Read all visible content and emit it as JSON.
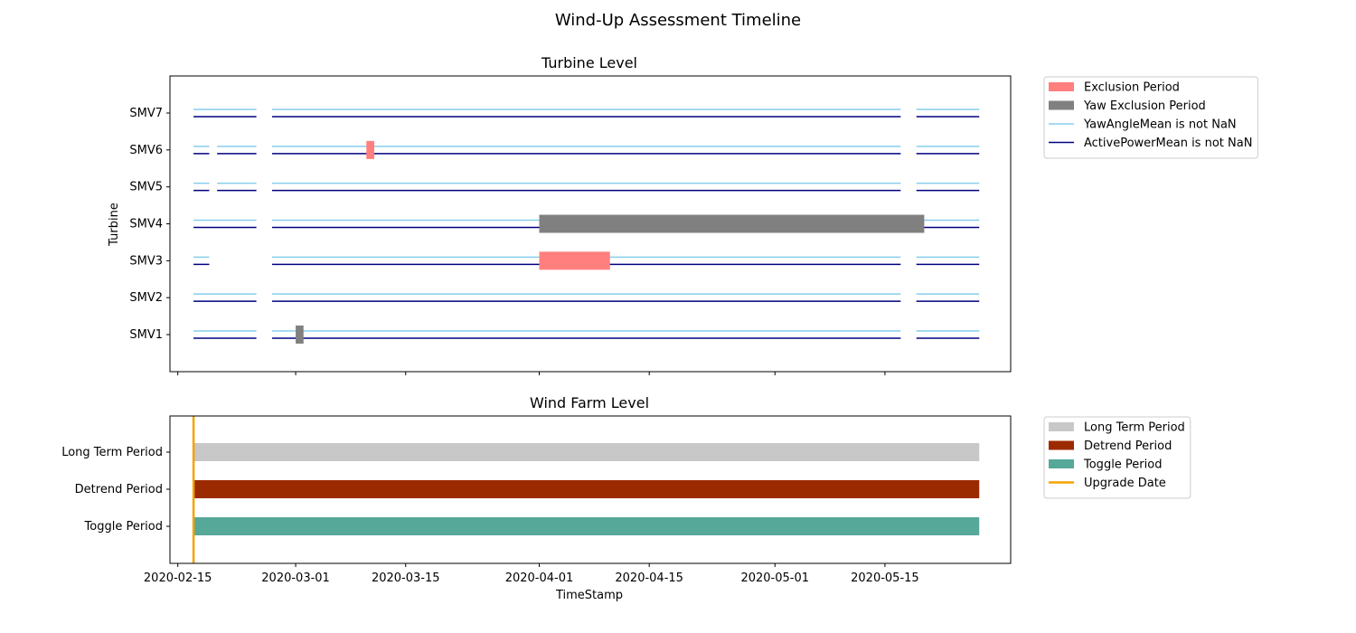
{
  "title": "Wind-Up Assessment Timeline",
  "chart_data": [
    {
      "type": "timeline",
      "title": "Turbine Level",
      "ylabel": "Turbine",
      "xlim": [
        "2020-02-14",
        "2020-05-31"
      ],
      "categories": [
        "SMV7",
        "SMV6",
        "SMV5",
        "SMV4",
        "SMV3",
        "SMV2",
        "SMV1"
      ],
      "legend": [
        {
          "label": "Exclusion Period",
          "kind": "patch",
          "color": "#ff7f7f"
        },
        {
          "label": "Yaw Exclusion Period",
          "kind": "patch",
          "color": "#808080"
        },
        {
          "label": "YawAngleMean is not NaN",
          "kind": "line",
          "color": "#87ceeb"
        },
        {
          "label": "ActivePowerMean is not NaN",
          "kind": "line",
          "color": "#000080"
        }
      ],
      "legend_position": "outside-right-top",
      "exclusion_periods": [
        {
          "turbine": "SMV6",
          "start": "2020-03-10",
          "end": "2020-03-11",
          "type": "Exclusion Period"
        },
        {
          "turbine": "SMV3",
          "start": "2020-04-01",
          "end": "2020-04-10",
          "type": "Exclusion Period"
        },
        {
          "turbine": "SMV4",
          "start": "2020-04-01",
          "end": "2020-05-20",
          "type": "Yaw Exclusion Period"
        },
        {
          "turbine": "SMV1",
          "start": "2020-03-01",
          "end": "2020-03-02",
          "type": "Yaw Exclusion Period"
        }
      ],
      "data_availability": [
        {
          "turbine": "SMV7",
          "segments": [
            [
              "2020-02-17",
              "2020-02-25"
            ],
            [
              "2020-02-27",
              "2020-05-17"
            ],
            [
              "2020-05-19",
              "2020-05-27"
            ]
          ]
        },
        {
          "turbine": "SMV6",
          "segments": [
            [
              "2020-02-17",
              "2020-02-19"
            ],
            [
              "2020-02-20",
              "2020-02-25"
            ],
            [
              "2020-02-27",
              "2020-05-17"
            ],
            [
              "2020-05-19",
              "2020-05-27"
            ]
          ]
        },
        {
          "turbine": "SMV5",
          "segments": [
            [
              "2020-02-17",
              "2020-02-19"
            ],
            [
              "2020-02-20",
              "2020-02-25"
            ],
            [
              "2020-02-27",
              "2020-05-17"
            ],
            [
              "2020-05-19",
              "2020-05-27"
            ]
          ]
        },
        {
          "turbine": "SMV4",
          "segments": [
            [
              "2020-02-17",
              "2020-02-25"
            ],
            [
              "2020-02-27",
              "2020-05-27"
            ]
          ]
        },
        {
          "turbine": "SMV3",
          "segments": [
            [
              "2020-02-17",
              "2020-02-19"
            ],
            [
              "2020-02-27",
              "2020-05-17"
            ],
            [
              "2020-05-19",
              "2020-05-27"
            ]
          ]
        },
        {
          "turbine": "SMV2",
          "segments": [
            [
              "2020-02-17",
              "2020-02-25"
            ],
            [
              "2020-02-27",
              "2020-05-17"
            ],
            [
              "2020-05-19",
              "2020-05-27"
            ]
          ]
        },
        {
          "turbine": "SMV1",
          "segments": [
            [
              "2020-02-17",
              "2020-02-25"
            ],
            [
              "2020-02-27",
              "2020-05-17"
            ],
            [
              "2020-05-19",
              "2020-05-27"
            ]
          ]
        }
      ]
    },
    {
      "type": "timeline",
      "title": "Wind Farm Level",
      "xlabel": "TimeStamp",
      "xlim": [
        "2020-02-14",
        "2020-05-31"
      ],
      "x_ticks": [
        "2020-02-15",
        "2020-03-01",
        "2020-03-15",
        "2020-04-01",
        "2020-04-15",
        "2020-05-01",
        "2020-05-15"
      ],
      "categories": [
        "Long Term Period",
        "Detrend Period",
        "Toggle Period"
      ],
      "legend": [
        {
          "label": "Long Term Period",
          "kind": "patch",
          "color": "#c8c8c8"
        },
        {
          "label": "Detrend Period",
          "kind": "patch",
          "color": "#9c2a00"
        },
        {
          "label": "Toggle Period",
          "kind": "patch",
          "color": "#56a899"
        },
        {
          "label": "Upgrade Date",
          "kind": "line",
          "color": "#f5a300"
        }
      ],
      "legend_position": "outside-right-top",
      "periods": [
        {
          "name": "Long Term Period",
          "start": "2020-02-17",
          "end": "2020-05-27"
        },
        {
          "name": "Detrend Period",
          "start": "2020-02-17",
          "end": "2020-05-27"
        },
        {
          "name": "Toggle Period",
          "start": "2020-02-17",
          "end": "2020-05-27"
        }
      ],
      "upgrade_date": "2020-02-17"
    }
  ]
}
